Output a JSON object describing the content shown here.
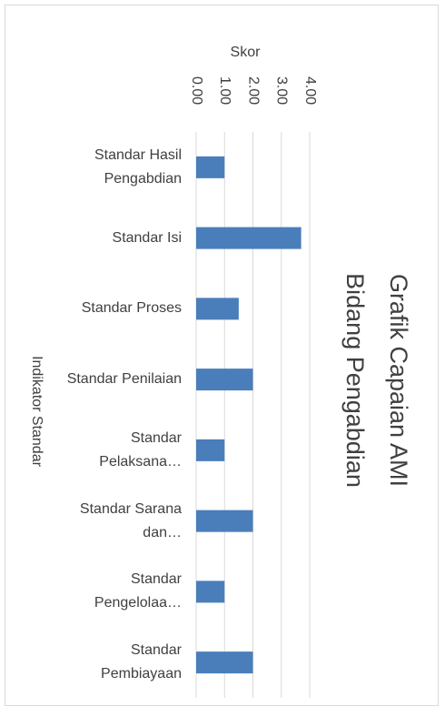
{
  "chart_data": {
    "type": "bar",
    "orientation": "horizontal",
    "title": "Grafik Capaian AMI Bidang Pengabdian",
    "x_label": "Skor",
    "y_label": "Indikator Standar",
    "categories": [
      "Standar Hasil Pengabdian",
      "Standar Isi",
      "Standar Proses",
      "Standar Penilaian",
      "Standar Pelaksana…",
      "Standar Sarana dan…",
      "Standar Pengelolaa…",
      "Standar Pembiayaan"
    ],
    "values": [
      1.0,
      3.7,
      1.5,
      2.0,
      1.0,
      2.0,
      1.0,
      2.0
    ],
    "color": "#4a7ebb",
    "xlim": [
      0,
      4
    ],
    "xticks": [
      {
        "value": 0,
        "label": "0.00"
      },
      {
        "value": 1,
        "label": "1.00"
      },
      {
        "value": 2,
        "label": "2.00"
      },
      {
        "value": 3,
        "label": "3.00"
      },
      {
        "value": 4,
        "label": "4.00"
      }
    ],
    "grid": true
  }
}
